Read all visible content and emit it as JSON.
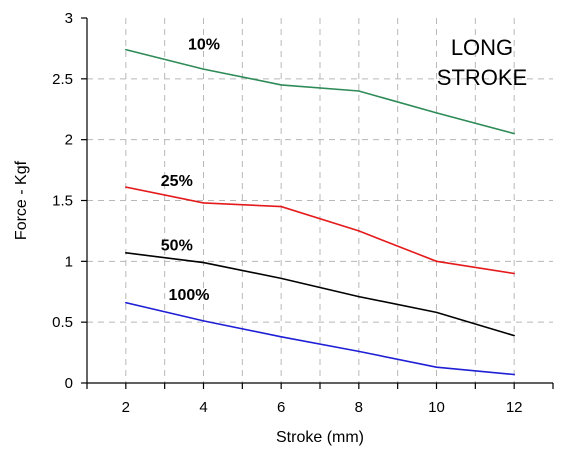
{
  "chart_data": {
    "type": "line",
    "title": "",
    "xlabel": "Stroke (mm)",
    "ylabel": "Force - Kgf",
    "xlim": [
      1,
      13
    ],
    "ylim": [
      0,
      3
    ],
    "x_ticks": [
      2,
      4,
      6,
      8,
      10,
      12
    ],
    "x_minor_ticks": [
      1,
      3,
      5,
      7,
      9,
      11,
      13
    ],
    "y_ticks": [
      0,
      0.5,
      1,
      1.5,
      2,
      2.5,
      3
    ],
    "y_tick_labels": [
      "0",
      "0.5",
      "1",
      "1.5",
      "2",
      "2.5",
      "3"
    ],
    "grid": true,
    "annotation": [
      "LONG",
      "STROKE"
    ],
    "x": [
      2,
      4,
      6,
      8,
      10,
      12
    ],
    "series": [
      {
        "label": "10%",
        "color": "#2e8b57",
        "values": [
          2.74,
          2.58,
          2.45,
          2.4,
          2.22,
          2.05
        ],
        "label_at": [
          3.6,
          2.79
        ]
      },
      {
        "label": "25%",
        "color": "#e41a1c",
        "values": [
          1.61,
          1.48,
          1.45,
          1.25,
          1.0,
          0.9
        ],
        "label_at": [
          2.9,
          1.67
        ]
      },
      {
        "label": "50%",
        "color": "#000000",
        "values": [
          1.07,
          0.99,
          0.86,
          0.71,
          0.58,
          0.39
        ],
        "label_at": [
          2.9,
          1.14
        ]
      },
      {
        "label": "100%",
        "color": "#1f1fd6",
        "values": [
          0.66,
          0.51,
          0.38,
          0.26,
          0.13,
          0.07
        ],
        "label_at": [
          3.1,
          0.73
        ]
      }
    ]
  }
}
